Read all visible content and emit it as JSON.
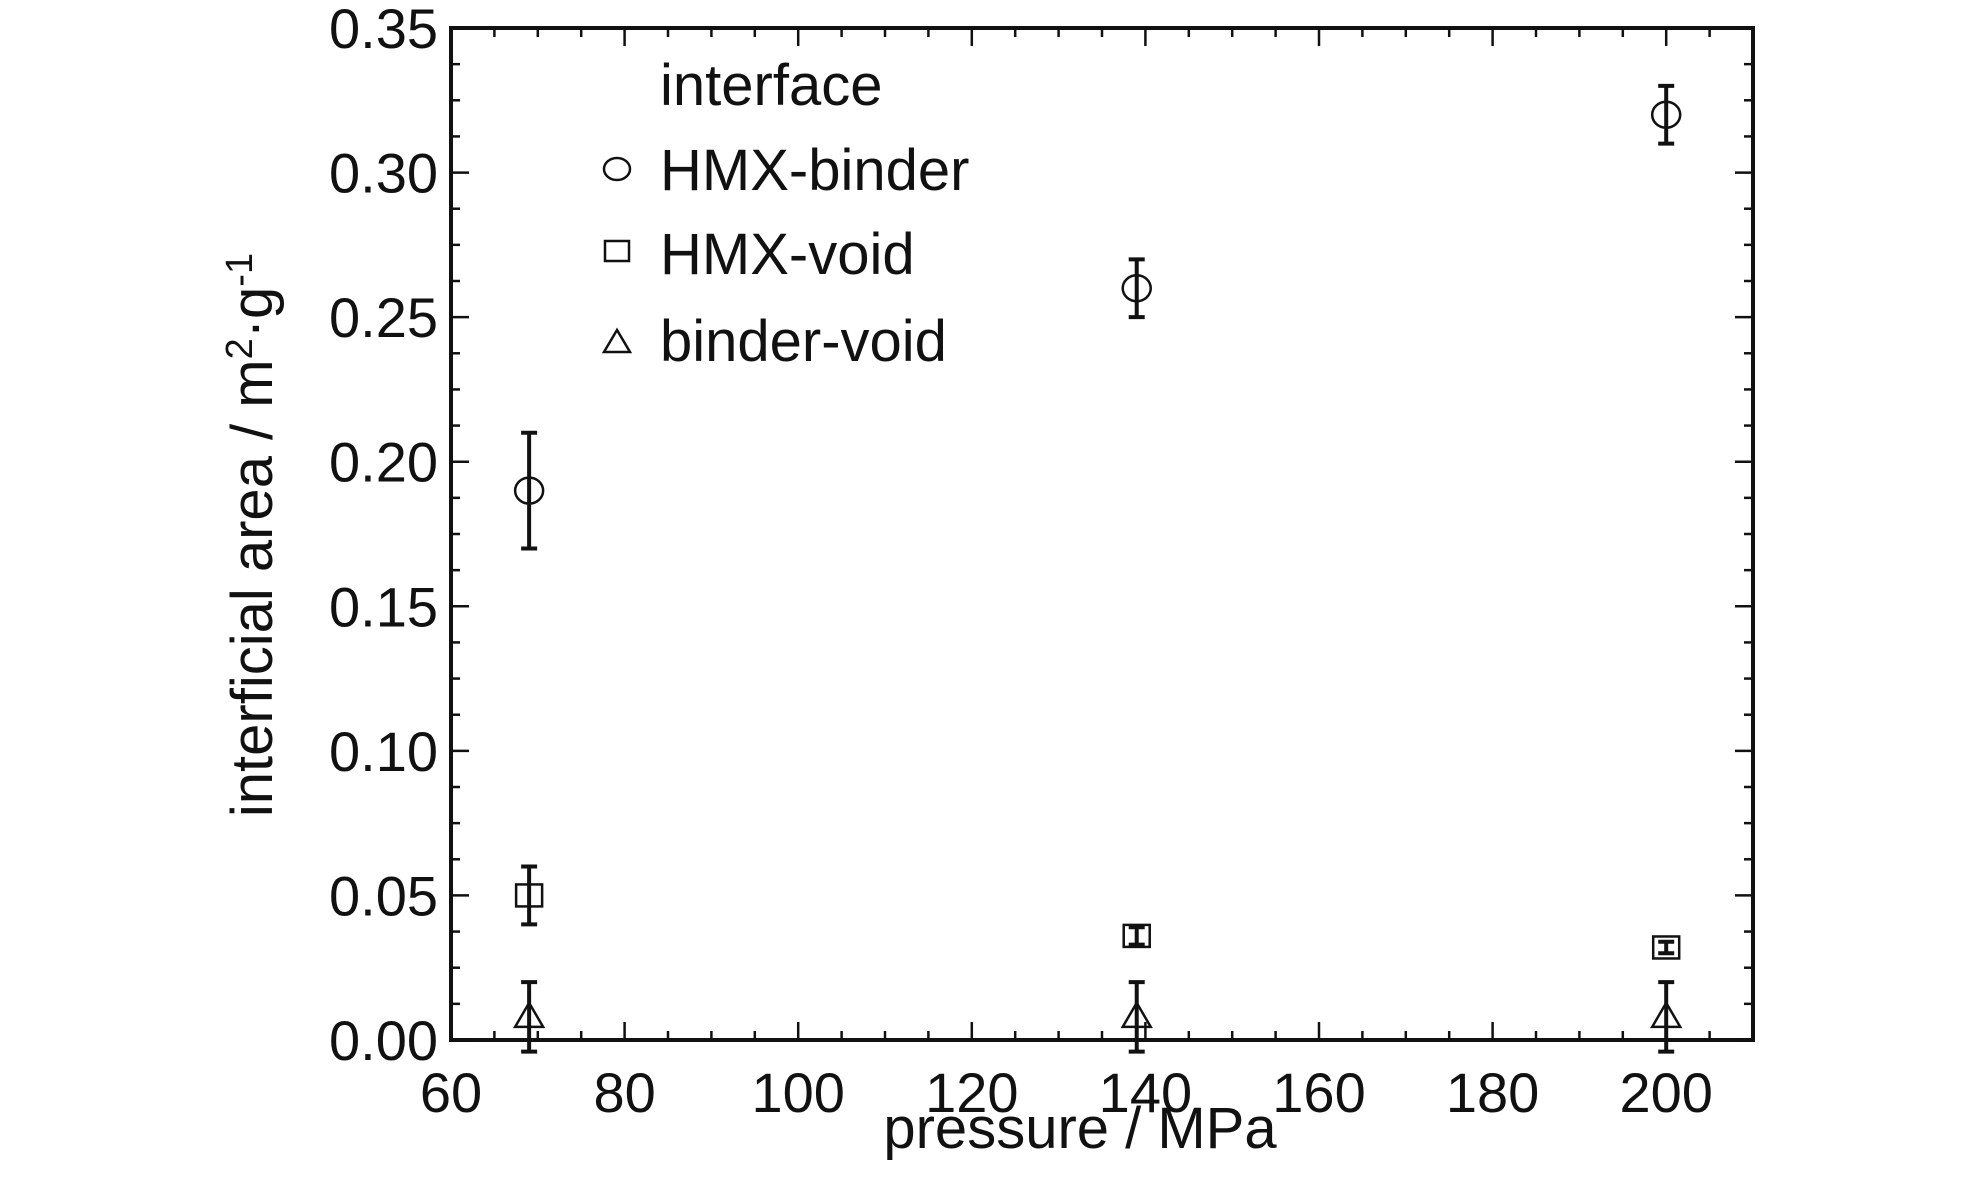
{
  "chart_data": {
    "type": "scatter",
    "xlabel": "pressure / MPa",
    "ylabel": "interficial area / m",
    "ylabel_sup1": "2",
    "ylabel_mid": "·g",
    "ylabel_sup2": "-1",
    "xlim": [
      60,
      210
    ],
    "ylim": [
      0,
      0.35
    ],
    "xticks": [
      60,
      80,
      100,
      120,
      140,
      160,
      180,
      200
    ],
    "xtick_labels": [
      "60",
      "80",
      "100",
      "120",
      "140",
      "160",
      "180",
      "200"
    ],
    "yticks": [
      0,
      0.05,
      0.1,
      0.15,
      0.2,
      0.25,
      0.3,
      0.35
    ],
    "ytick_labels": [
      "0.00",
      "0.05",
      "0.10",
      "0.15",
      "0.20",
      "0.25",
      "0.30",
      "0.35"
    ],
    "legend_title": "interface",
    "legend_position": "top-left",
    "grid": false,
    "series": [
      {
        "name": "HMX-binder",
        "marker": "circle",
        "x": [
          69,
          139,
          200
        ],
        "y": [
          0.19,
          0.26,
          0.32
        ],
        "err": [
          0.02,
          0.01,
          0.01
        ]
      },
      {
        "name": "HMX-void",
        "marker": "square",
        "x": [
          69,
          139,
          200
        ],
        "y": [
          0.05,
          0.036,
          0.032
        ],
        "err": [
          0.01,
          0.003,
          0.002
        ]
      },
      {
        "name": "binder-void",
        "marker": "triangle",
        "x": [
          69,
          139,
          200
        ],
        "y": [
          0.008,
          0.008,
          0.008
        ],
        "err": [
          0.012,
          0.012,
          0.012
        ]
      }
    ]
  }
}
